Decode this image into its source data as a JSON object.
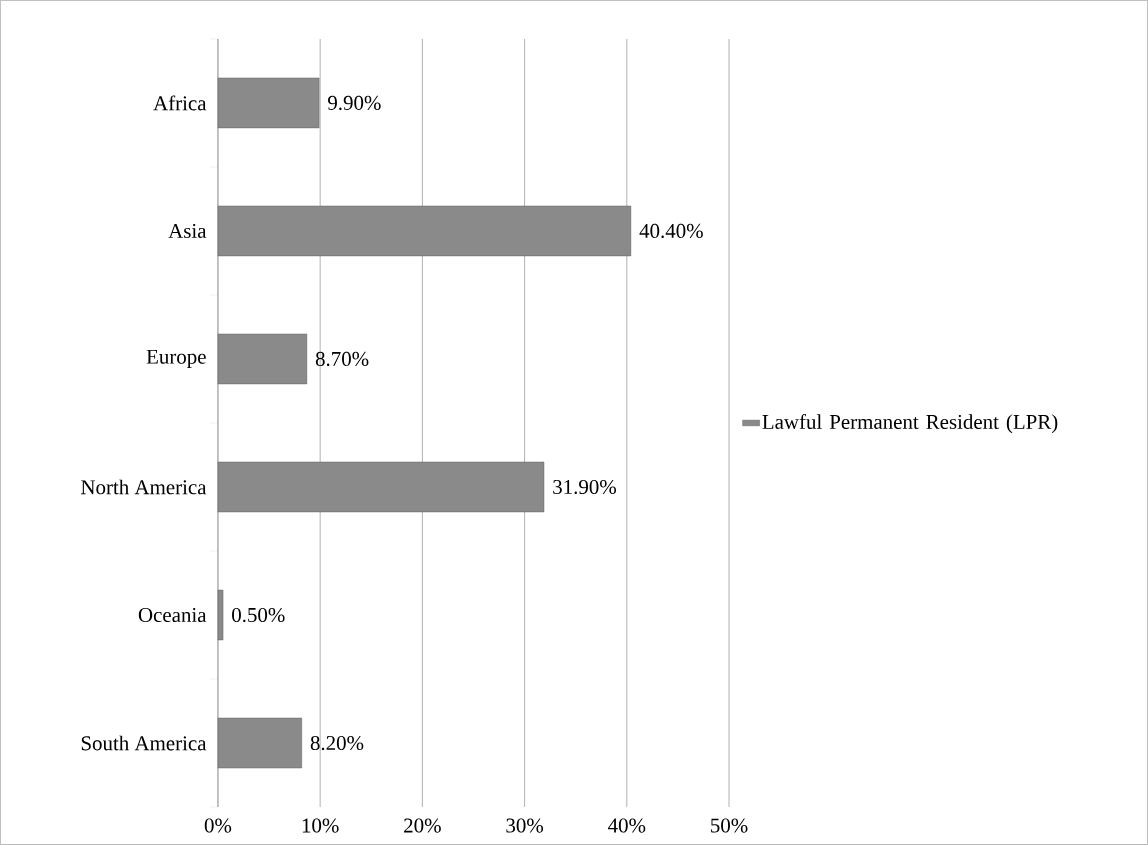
{
  "chart_data": {
    "type": "bar",
    "orientation": "horizontal",
    "categories": [
      "Africa",
      "Asia",
      "Europe",
      "North America",
      "Oceania",
      "South America"
    ],
    "series": [
      {
        "name": "Lawful Permanent Resident (LPR)",
        "color": "#8a8a8a",
        "values": [
          9.9,
          40.4,
          8.7,
          31.9,
          0.5,
          8.2
        ],
        "value_labels": [
          "9.90%",
          "40.40%",
          "8.70%",
          "31.90%",
          "0.50%",
          "8.20%"
        ]
      }
    ],
    "xlim": [
      0,
      50
    ],
    "xticks": [
      {
        "value": 0,
        "label": "0%"
      },
      {
        "value": 10,
        "label": "10%"
      },
      {
        "value": 20,
        "label": "20%"
      },
      {
        "value": 30,
        "label": "30%"
      },
      {
        "value": 40,
        "label": "40%"
      },
      {
        "value": 50,
        "label": "50%"
      }
    ],
    "grid": "x",
    "legend": "right"
  }
}
